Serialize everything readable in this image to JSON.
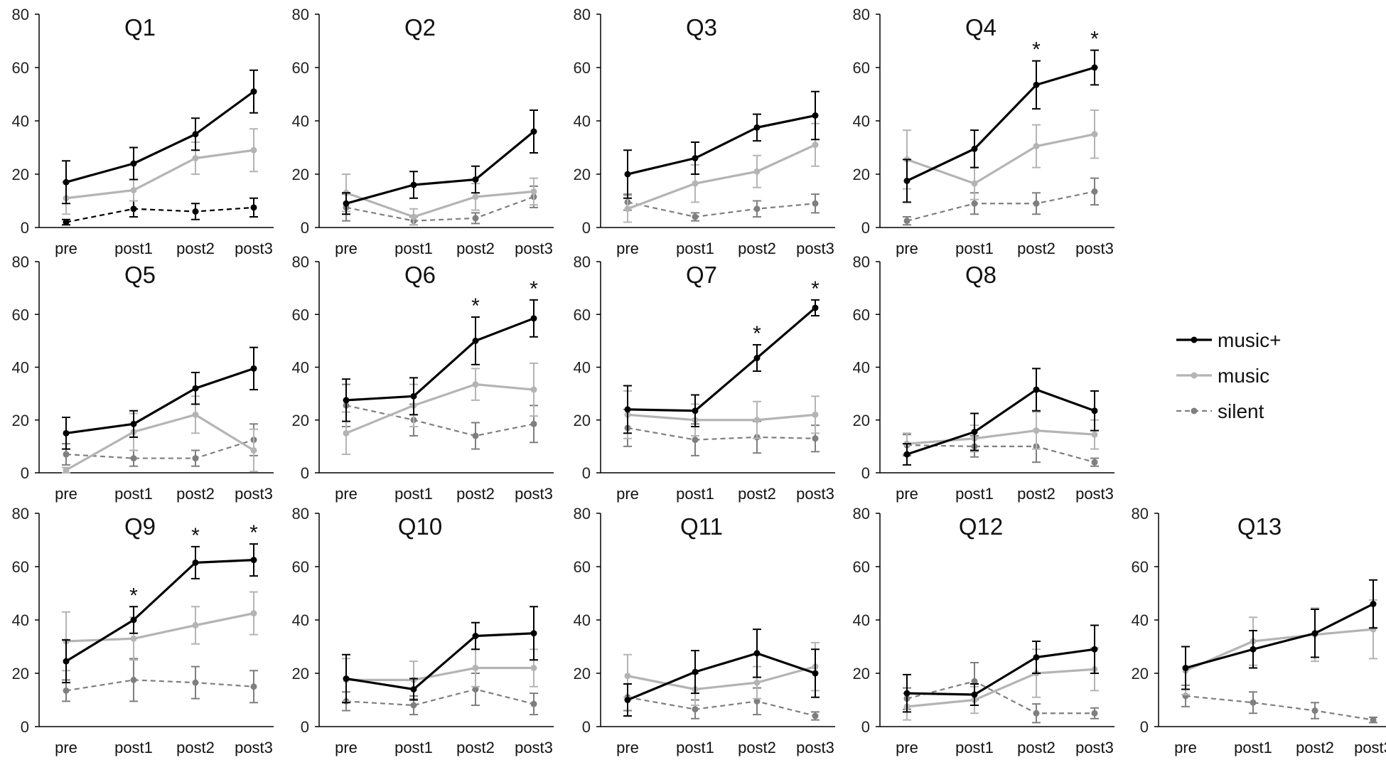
{
  "chart_data": {
    "type": "line",
    "y_axis": {
      "ylim": [
        0,
        80
      ],
      "ticks": [
        "0",
        "20",
        "40",
        "60",
        "80"
      ]
    },
    "categories": [
      "pre",
      "post1",
      "post2",
      "post3"
    ],
    "series_styles": {
      "music+": {
        "color": "#000000",
        "dash": "solid"
      },
      "music": {
        "color": "#b4b4b4",
        "dash": "solid"
      },
      "silent": {
        "color": "#7f7f7f",
        "dash": "dashed"
      }
    },
    "legend": {
      "position": "right",
      "entries": [
        "music+",
        "music",
        "silent"
      ]
    },
    "panels": [
      {
        "title": "Q1",
        "series": [
          {
            "name": "music+",
            "values": [
              17,
              24,
              35,
              51
            ],
            "errors": [
              8,
              6,
              6,
              8
            ]
          },
          {
            "name": "music",
            "values": [
              11,
              14,
              26,
              29
            ],
            "errors": [
              6,
              4,
              6,
              8
            ]
          },
          {
            "name": "silent",
            "values": [
              2,
              7,
              6,
              7.5
            ],
            "errors": [
              1,
              3,
              3,
              3.5
            ],
            "color": "#000000"
          }
        ],
        "significance": [
          "",
          "",
          "",
          ""
        ]
      },
      {
        "title": "Q2",
        "series": [
          {
            "name": "music+",
            "values": [
              9,
              16,
              18,
              36
            ],
            "errors": [
              4,
              5,
              5,
              8
            ]
          },
          {
            "name": "music",
            "values": [
              13,
              4,
              11.5,
              13.5
            ],
            "errors": [
              7,
              3,
              5,
              5
            ]
          },
          {
            "name": "silent",
            "values": [
              7.5,
              2.5,
              3.5,
              11.5
            ],
            "errors": [
              5,
              1.5,
              2,
              4
            ]
          }
        ],
        "significance": [
          "",
          "",
          "",
          ""
        ]
      },
      {
        "title": "Q3",
        "series": [
          {
            "name": "music+",
            "values": [
              20,
              26,
              37.5,
              42
            ],
            "errors": [
              9,
              6,
              5,
              9
            ]
          },
          {
            "name": "music",
            "values": [
              7,
              16.5,
              21,
              31
            ],
            "errors": [
              5,
              7,
              6,
              8
            ]
          },
          {
            "name": "silent",
            "values": [
              9.5,
              4,
              7,
              9
            ],
            "errors": [
              3,
              1.5,
              3,
              3.5
            ]
          }
        ],
        "significance": [
          "",
          "",
          "",
          ""
        ]
      },
      {
        "title": "Q4",
        "series": [
          {
            "name": "music+",
            "values": [
              17.5,
              29.5,
              53.5,
              60
            ],
            "errors": [
              8,
              7,
              9,
              6.5
            ]
          },
          {
            "name": "music",
            "values": [
              25.5,
              16.5,
              30.5,
              35
            ],
            "errors": [
              11,
              6,
              8,
              9
            ]
          },
          {
            "name": "silent",
            "values": [
              2.5,
              9,
              9,
              13.5
            ],
            "errors": [
              1.5,
              4,
              4,
              5
            ]
          }
        ],
        "significance": [
          "",
          "",
          "*",
          "*"
        ]
      },
      {
        "title": "Q5",
        "series": [
          {
            "name": "music+",
            "values": [
              15,
              18.5,
              32,
              39.5
            ],
            "errors": [
              6,
              5,
              6,
              8
            ]
          },
          {
            "name": "music",
            "values": [
              1,
              15.5,
              22,
              8.5
            ],
            "errors": [
              1,
              7,
              7,
              8
            ]
          },
          {
            "name": "silent",
            "values": [
              7,
              5.5,
              5.5,
              12.5
            ],
            "errors": [
              4,
              3,
              3,
              6
            ]
          }
        ],
        "significance": [
          "",
          "",
          "",
          ""
        ]
      },
      {
        "title": "Q6",
        "series": [
          {
            "name": "music+",
            "values": [
              27.5,
              29,
              50,
              58.5
            ],
            "errors": [
              8,
              7,
              9,
              7
            ]
          },
          {
            "name": "music",
            "values": [
              15,
              25.5,
              33.5,
              31.5
            ],
            "errors": [
              8,
              8,
              6,
              10
            ]
          },
          {
            "name": "silent",
            "values": [
              25.5,
              20,
              14,
              18.5
            ],
            "errors": [
              8,
              6,
              5,
              7
            ]
          }
        ],
        "significance": [
          "",
          "",
          "*",
          "*"
        ]
      },
      {
        "title": "Q7",
        "series": [
          {
            "name": "music+",
            "values": [
              24,
              23.5,
              43.5,
              62.5
            ],
            "errors": [
              9,
              6,
              5,
              3
            ]
          },
          {
            "name": "music",
            "values": [
              22,
              20,
              20,
              22
            ],
            "errors": [
              9,
              6,
              7,
              7
            ]
          },
          {
            "name": "silent",
            "values": [
              17,
              12.5,
              13.5,
              13
            ],
            "errors": [
              7,
              6,
              6,
              5
            ]
          }
        ],
        "significance": [
          "",
          "",
          "*",
          "*"
        ]
      },
      {
        "title": "Q8",
        "series": [
          {
            "name": "music+",
            "values": [
              7,
              15.5,
              31.5,
              23.5
            ],
            "errors": [
              4,
              7,
              8,
              7.5
            ]
          },
          {
            "name": "music",
            "values": [
              11,
              13,
              16,
              14.5
            ],
            "errors": [
              4,
              5,
              7,
              5.5
            ]
          },
          {
            "name": "silent",
            "values": [
              10.5,
              10,
              10,
              4
            ],
            "errors": [
              4,
              4,
              6,
              1.5
            ]
          }
        ],
        "significance": [
          "",
          "",
          "",
          ""
        ]
      },
      {
        "title": "Q9",
        "series": [
          {
            "name": "music+",
            "values": [
              24.5,
              40,
              61.5,
              62.5
            ],
            "errors": [
              8,
              5,
              6,
              6
            ]
          },
          {
            "name": "music",
            "values": [
              32,
              33,
              38,
              42.5
            ],
            "errors": [
              11,
              8,
              7,
              8
            ]
          },
          {
            "name": "silent",
            "values": [
              13.5,
              17.5,
              16.5,
              15
            ],
            "errors": [
              4,
              8,
              6,
              6
            ]
          }
        ],
        "significance": [
          "",
          "*",
          "*",
          "*"
        ]
      },
      {
        "title": "Q10",
        "series": [
          {
            "name": "music+",
            "values": [
              18,
              14,
              34,
              35
            ],
            "errors": [
              9,
              4,
              5,
              10
            ]
          },
          {
            "name": "music",
            "values": [
              17.5,
              17.5,
              22,
              22
            ],
            "errors": [
              8,
              7,
              7,
              7
            ]
          },
          {
            "name": "silent",
            "values": [
              9.5,
              8,
              14,
              8.5
            ],
            "errors": [
              3.5,
              3.5,
              6,
              4
            ]
          }
        ],
        "significance": [
          "",
          "",
          "",
          ""
        ]
      },
      {
        "title": "Q11",
        "series": [
          {
            "name": "music+",
            "values": [
              10,
              20.5,
              27.5,
              20
            ],
            "errors": [
              6,
              8,
              9,
              9
            ]
          },
          {
            "name": "music",
            "values": [
              19,
              14,
              16.5,
              22.5
            ],
            "errors": [
              8,
              6,
              6,
              9
            ]
          },
          {
            "name": "silent",
            "values": [
              11,
              6.5,
              9.5,
              4
            ],
            "errors": [
              5,
              3.5,
              5,
              1.5
            ]
          }
        ],
        "significance": [
          "",
          "",
          "",
          ""
        ]
      },
      {
        "title": "Q12",
        "series": [
          {
            "name": "music+",
            "values": [
              12.5,
              12,
              26,
              29
            ],
            "errors": [
              7,
              4,
              6,
              9
            ]
          },
          {
            "name": "music",
            "values": [
              7.5,
              10,
              20,
              21.5
            ],
            "errors": [
              5,
              5,
              9,
              8
            ]
          },
          {
            "name": "silent",
            "values": [
              10.5,
              17,
              5,
              5
            ],
            "errors": [
              4,
              7,
              3.5,
              2
            ]
          }
        ],
        "significance": [
          "",
          "",
          "",
          ""
        ]
      },
      {
        "title": "Q13",
        "series": [
          {
            "name": "music+",
            "values": [
              22,
              29,
              35,
              46
            ],
            "errors": [
              8,
              7,
              9,
              9
            ]
          },
          {
            "name": "music",
            "values": [
              21,
              32,
              34.5,
              36.5
            ],
            "errors": [
              9,
              9,
              10,
              11
            ]
          },
          {
            "name": "silent",
            "values": [
              11.5,
              9,
              6,
              2.5
            ],
            "errors": [
              4,
              4,
              3,
              1
            ]
          }
        ],
        "significance": [
          "",
          "",
          "",
          ""
        ]
      }
    ]
  }
}
